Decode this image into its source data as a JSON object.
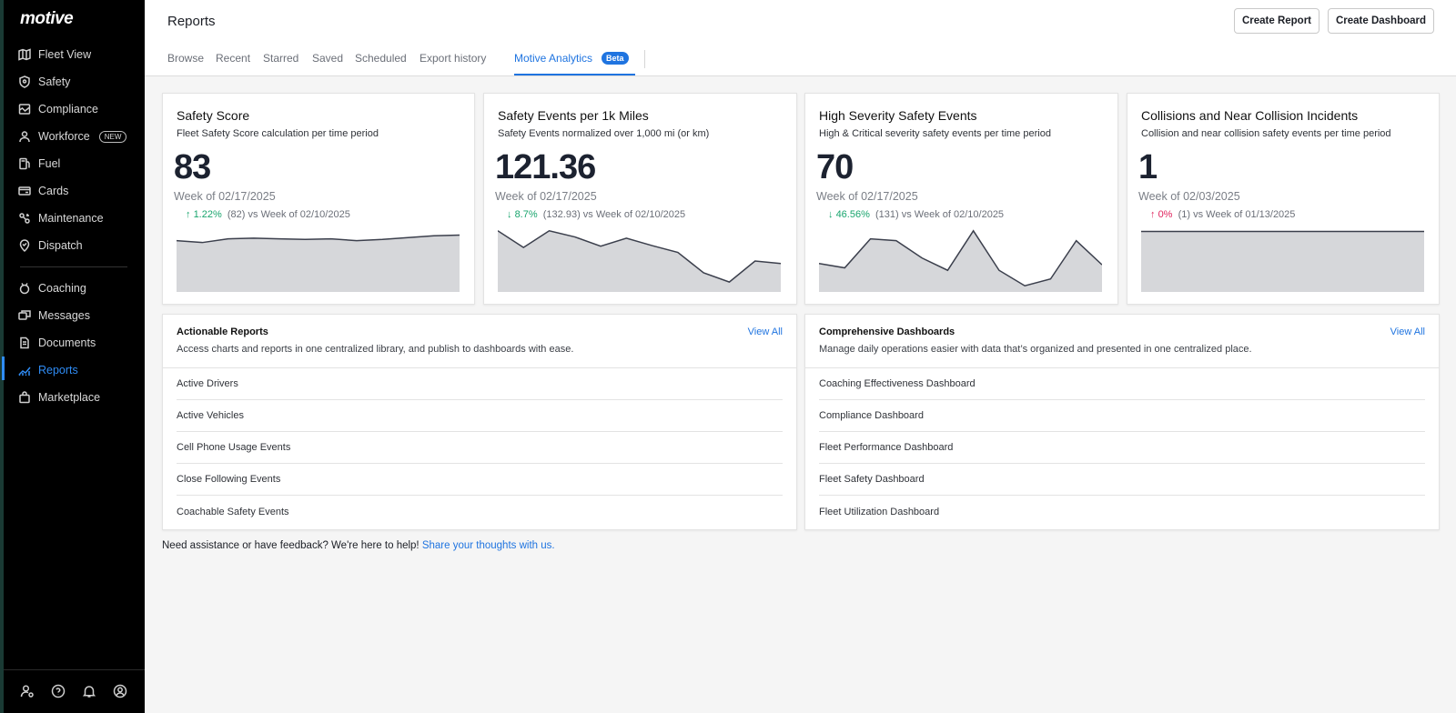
{
  "app": {
    "logo": "motive"
  },
  "sidebar": {
    "main_items": [
      {
        "label": "Fleet View",
        "icon": "map-icon"
      },
      {
        "label": "Safety",
        "icon": "shield-icon"
      },
      {
        "label": "Compliance",
        "icon": "compliance-icon"
      },
      {
        "label": "Workforce",
        "icon": "person-icon",
        "badge": "NEW"
      },
      {
        "label": "Fuel",
        "icon": "fuel-icon"
      },
      {
        "label": "Cards",
        "icon": "card-icon"
      },
      {
        "label": "Maintenance",
        "icon": "wrench-icon"
      },
      {
        "label": "Dispatch",
        "icon": "location-pin-icon"
      }
    ],
    "secondary_items": [
      {
        "label": "Coaching",
        "icon": "coaching-icon"
      },
      {
        "label": "Messages",
        "icon": "messages-icon"
      },
      {
        "label": "Documents",
        "icon": "document-icon"
      },
      {
        "label": "Reports",
        "icon": "reports-chart-icon",
        "active": true
      },
      {
        "label": "Marketplace",
        "icon": "bag-icon"
      }
    ],
    "bottom_icons": [
      "user-settings-icon",
      "help-icon",
      "bell-icon",
      "account-icon"
    ]
  },
  "header": {
    "title": "Reports",
    "create_report": "Create Report",
    "create_dashboard": "Create Dashboard",
    "tabs": [
      "Browse",
      "Recent",
      "Starred",
      "Saved",
      "Scheduled",
      "Export history"
    ],
    "active_tab": "Motive Analytics",
    "active_tab_badge": "Beta"
  },
  "metrics": [
    {
      "title": "Safety Score",
      "subtitle": "Fleet Safety Score calculation per time period",
      "value": "83",
      "week": "Week of 02/17/2025",
      "change_arrow": "↑",
      "change_pct": "1.22%",
      "change_rest": "(82) vs Week of 02/10/2025",
      "change_color": "#1aa56e",
      "spark": [
        0.83,
        0.8,
        0.86,
        0.87,
        0.86,
        0.85,
        0.86,
        0.83,
        0.85,
        0.88,
        0.91,
        0.92
      ]
    },
    {
      "title": "Safety Events per 1k Miles",
      "subtitle": "Safety Events normalized over 1,000 mi (or km)",
      "value": "121.36",
      "week": "Week of 02/17/2025",
      "change_arrow": "↓",
      "change_pct": "8.7%",
      "change_rest": "(132.93) vs Week of 02/10/2025",
      "change_color": "#1aa56e",
      "spark": [
        0.99,
        0.72,
        0.99,
        0.89,
        0.74,
        0.87,
        0.75,
        0.64,
        0.31,
        0.16,
        0.5,
        0.46
      ]
    },
    {
      "title": "High Severity Safety Events",
      "subtitle": "High & Critical severity safety events per time period",
      "value": "70",
      "week": "Week of 02/17/2025",
      "change_arrow": "↓",
      "change_pct": "46.56%",
      "change_rest": "(131) vs Week of 02/10/2025",
      "change_color": "#1aa56e",
      "spark": [
        0.46,
        0.39,
        0.86,
        0.83,
        0.55,
        0.35,
        0.99,
        0.35,
        0.1,
        0.21,
        0.83,
        0.44
      ]
    },
    {
      "title": "Collisions and Near Collision Incidents",
      "subtitle": "Collision and near collision safety events per time period",
      "value": "1",
      "week": "Week of 02/03/2025",
      "change_arrow": "↑",
      "change_pct": "0%",
      "change_rest": "(1) vs Week of 01/13/2025",
      "change_color": "#e0245e",
      "spark": [
        0.98,
        0.98,
        0.98,
        0.98,
        0.98,
        0.98,
        0.98,
        0.98,
        0.98,
        0.98,
        0.98,
        0.98
      ]
    }
  ],
  "reports": {
    "title": "Actionable Reports",
    "description": "Access charts and reports in one centralized library, and publish to dashboards with ease.",
    "view_all": "View All",
    "items": [
      "Active Drivers",
      "Active Vehicles",
      "Cell Phone Usage Events",
      "Close Following Events",
      "Coachable Safety Events"
    ]
  },
  "dashboards": {
    "title": "Comprehensive Dashboards",
    "description": "Manage daily operations easier with data that’s organized and presented in one centralized place.",
    "view_all": "View All",
    "items": [
      "Coaching Effectiveness Dashboard",
      "Compliance Dashboard",
      "Fleet Performance Dashboard",
      "Fleet Safety Dashboard",
      "Fleet Utilization Dashboard"
    ]
  },
  "footer": {
    "text": "Need assistance or have feedback? We're here to help! ",
    "link": "Share your thoughts with us."
  },
  "colors": {
    "accent": "#1f74e0",
    "sidebar": "#000000",
    "sparkline_fill": "#d6d7da",
    "sparkline_stroke": "#3b3f4c"
  }
}
